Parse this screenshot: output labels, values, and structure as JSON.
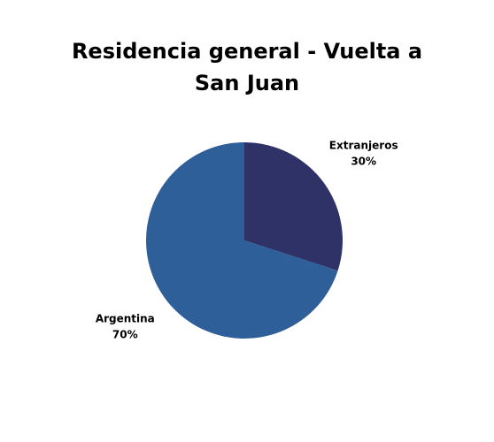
{
  "chart_data": {
    "type": "pie",
    "title": "Residencia general - Vuelta a San Juan",
    "categories": [
      "Extranjeros",
      "Argentina"
    ],
    "values": [
      30,
      70
    ],
    "value_labels": [
      "30%",
      "70%"
    ],
    "colors": [
      "#2e3266",
      "#2e5f98"
    ]
  }
}
